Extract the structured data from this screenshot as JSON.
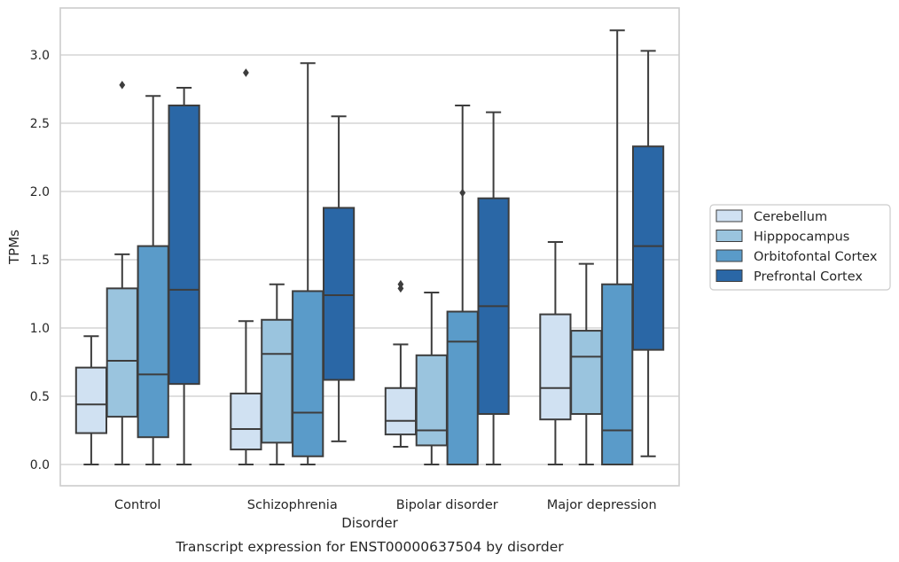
{
  "chart_data": {
    "type": "box",
    "caption": "Transcript expression for ENST00000637504 by disorder",
    "xlabel": "Disorder",
    "ylabel": "TPMs",
    "ylim": [
      -0.15,
      3.35
    ],
    "yticks": [
      0.0,
      0.5,
      1.0,
      1.5,
      2.0,
      2.5,
      3.0
    ],
    "ytick_labels": [
      "0.0",
      "0.5",
      "1.0",
      "1.5",
      "2.0",
      "2.5",
      "3.0"
    ],
    "grid": "horizontal",
    "legend_position": "right",
    "categories": [
      "Control",
      "Schizophrenia",
      "Bipolar disorder",
      "Major depression"
    ],
    "series": [
      {
        "name": "Cerebellum",
        "color": "#d0e1f2",
        "boxes": [
          {
            "whislo": 0.0,
            "q1": 0.23,
            "med": 0.44,
            "q3": 0.71,
            "whishi": 0.94,
            "fliers": []
          },
          {
            "whislo": 0.0,
            "q1": 0.11,
            "med": 0.26,
            "q3": 0.52,
            "whishi": 1.05,
            "fliers": [
              2.87
            ]
          },
          {
            "whislo": 0.13,
            "q1": 0.22,
            "med": 0.32,
            "q3": 0.56,
            "whishi": 0.88,
            "fliers": [
              1.29,
              1.32
            ]
          },
          {
            "whislo": 0.0,
            "q1": 0.33,
            "med": 0.56,
            "q3": 1.1,
            "whishi": 1.63,
            "fliers": []
          }
        ]
      },
      {
        "name": "Hipppocampus",
        "color": "#9ac4de",
        "boxes": [
          {
            "whislo": 0.0,
            "q1": 0.35,
            "med": 0.76,
            "q3": 1.29,
            "whishi": 1.54,
            "fliers": [
              2.78
            ]
          },
          {
            "whislo": 0.0,
            "q1": 0.16,
            "med": 0.81,
            "q3": 1.06,
            "whishi": 1.32,
            "fliers": []
          },
          {
            "whislo": 0.0,
            "q1": 0.14,
            "med": 0.25,
            "q3": 0.8,
            "whishi": 1.26,
            "fliers": []
          },
          {
            "whislo": 0.0,
            "q1": 0.37,
            "med": 0.79,
            "q3": 0.98,
            "whishi": 1.47,
            "fliers": []
          }
        ]
      },
      {
        "name": "Orbitofontal Cortex",
        "color": "#5a9bc9",
        "boxes": [
          {
            "whislo": 0.0,
            "q1": 0.2,
            "med": 0.66,
            "q3": 1.6,
            "whishi": 2.7,
            "fliers": []
          },
          {
            "whislo": 0.0,
            "q1": 0.06,
            "med": 0.38,
            "q3": 1.27,
            "whishi": 2.94,
            "fliers": []
          },
          {
            "whislo": 0.0,
            "q1": 0.0,
            "med": 0.9,
            "q3": 1.12,
            "whishi": 2.63,
            "fliers": [
              1.99
            ]
          },
          {
            "whislo": 0.0,
            "q1": 0.0,
            "med": 0.25,
            "q3": 1.32,
            "whishi": 3.18,
            "fliers": []
          }
        ]
      },
      {
        "name": "Prefrontal Cortex",
        "color": "#2a67a6",
        "boxes": [
          {
            "whislo": 0.0,
            "q1": 0.59,
            "med": 1.28,
            "q3": 2.63,
            "whishi": 2.76,
            "fliers": []
          },
          {
            "whislo": 0.17,
            "q1": 0.62,
            "med": 1.24,
            "q3": 1.88,
            "whishi": 2.55,
            "fliers": []
          },
          {
            "whislo": 0.0,
            "q1": 0.37,
            "med": 1.16,
            "q3": 1.95,
            "whishi": 2.58,
            "fliers": []
          },
          {
            "whislo": 0.06,
            "q1": 0.84,
            "med": 1.6,
            "q3": 2.33,
            "whishi": 3.03,
            "fliers": []
          }
        ]
      }
    ]
  }
}
